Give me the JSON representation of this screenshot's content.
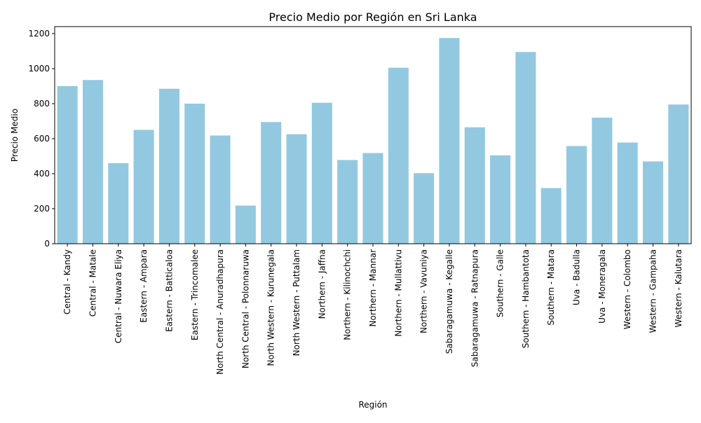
{
  "chart_data": {
    "type": "bar",
    "title": "Precio Medio por Región en Sri Lanka",
    "xlabel": "Región",
    "ylabel": "Precio Medio",
    "ylim": [
      0,
      1240
    ],
    "yticks": [
      0,
      200,
      400,
      600,
      800,
      1000,
      1200
    ],
    "grid": false,
    "legend": "none",
    "bar_color": "#92c9e0",
    "categories": [
      "Central - Kandy",
      "Central - Matale",
      "Central - Nuwara Eliya",
      "Eastern - Ampara",
      "Eastern - Batticaloa",
      "Eastern - Trincomalee",
      "North Central - Anuradhapura",
      "North Central - Polonnaruwa",
      "North Western - Kurunegala",
      "North Western - Puttalam",
      "Northern - Jaffna",
      "Northern - Kilinochchi",
      "Northern - Mannar",
      "Northern - Mullattivu",
      "Northern - Vavuniya",
      "Sabaragamuwa - Kegalle",
      "Sabaragamuwa - Ratnapura",
      "Southern - Galle",
      "Southern - Hambantota",
      "Southern - Matara",
      "Uva - Badulla",
      "Uva - Moneragala",
      "Western - Colombo",
      "Western - Gampaha",
      "Western - Kalutara"
    ],
    "values": [
      900,
      935,
      460,
      650,
      885,
      800,
      618,
      218,
      695,
      625,
      805,
      478,
      518,
      1005,
      403,
      1175,
      665,
      505,
      1095,
      318,
      558,
      720,
      578,
      470,
      795
    ]
  }
}
